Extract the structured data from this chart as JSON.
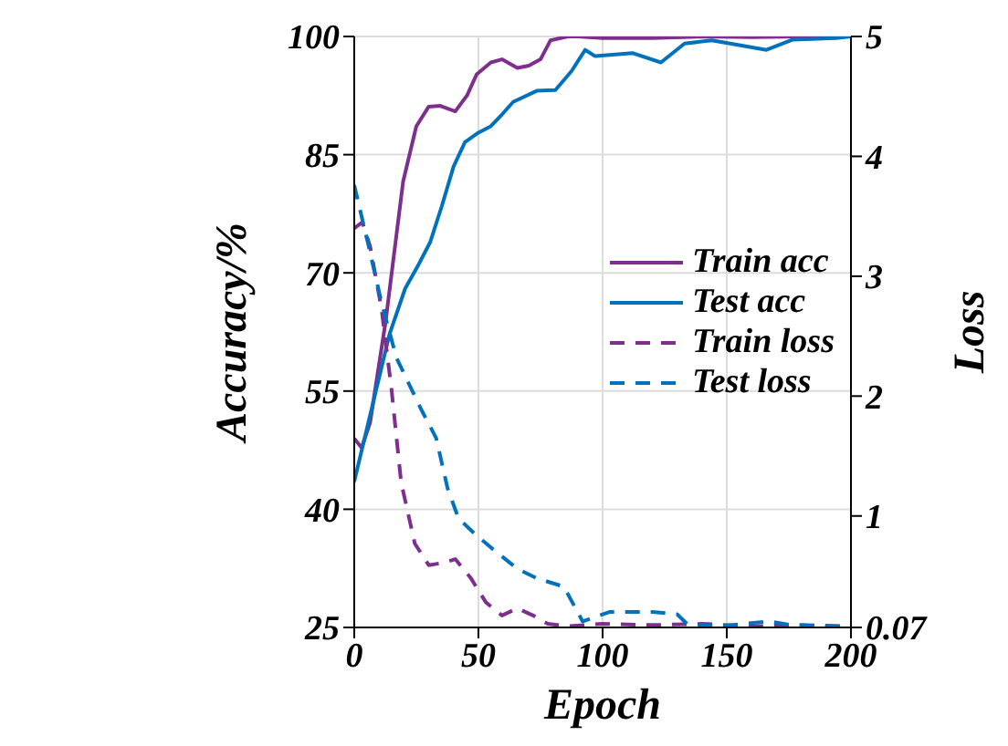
{
  "chart_data": {
    "type": "line",
    "xlabel": "Epoch",
    "ylabel": "Accuracy/%",
    "y2label": "Loss",
    "xlim": [
      0,
      200
    ],
    "xticks": [
      0,
      50,
      100,
      150,
      200
    ],
    "ylim": [
      25,
      100
    ],
    "yticks": [
      25,
      40,
      55,
      70,
      85,
      100
    ],
    "y2lim": [
      0.07,
      5
    ],
    "y2ticks": [
      0.07,
      1,
      2,
      3,
      4,
      5
    ],
    "grid": true,
    "legend": "right",
    "marker": "none",
    "series": [
      {
        "name": "Train acc",
        "color": "#7e2f8e",
        "line_style": "solid",
        "x": [
          0,
          3,
          6.4,
          12.6,
          19.7,
          25,
          30,
          34.7,
          40.7,
          45.4,
          49.3,
          55,
          59.5,
          65.7,
          70.3,
          75,
          79,
          86,
          90,
          100,
          120,
          140,
          160,
          180,
          200
        ],
        "values": [
          49,
          47.8,
          51,
          63.7,
          81.6,
          88.6,
          91.1,
          91.2,
          90.5,
          92.5,
          95.2,
          96.7,
          97.1,
          96,
          96.3,
          97.1,
          99.5,
          100,
          100,
          99.8,
          99.8,
          100,
          99.9,
          100,
          100
        ]
      },
      {
        "name": "Test acc",
        "color": "#0072bd",
        "line_style": "solid",
        "x": [
          0,
          14.2,
          20.5,
          26,
          30.6,
          35.3,
          40,
          44.6,
          50,
          55,
          59.5,
          64,
          73.5,
          81,
          87.5,
          93,
          97,
          112,
          123.5,
          133,
          144,
          166,
          176.6,
          194,
          200
        ],
        "values": [
          43.5,
          62.2,
          68,
          71.1,
          73.9,
          78.5,
          83.5,
          86.6,
          87.8,
          88.6,
          90.1,
          91.7,
          93.1,
          93.2,
          95.6,
          98.3,
          97.5,
          97.9,
          96.7,
          99.1,
          99.5,
          98.3,
          99.6,
          99.8,
          100
        ]
      },
      {
        "name": "Train loss",
        "color": "#7e2f8e",
        "line_style": "dashed",
        "axis": "y2",
        "x": [
          0,
          3.3,
          6.4,
          11,
          15,
          18.9,
          24.4,
          30,
          36,
          40.7,
          47,
          53,
          59.5,
          65.7,
          72,
          78,
          86,
          100,
          120,
          140,
          160,
          180,
          200
        ],
        "values": [
          3.4,
          3.45,
          3.25,
          2.73,
          2.06,
          1.28,
          0.77,
          0.59,
          0.61,
          0.64,
          0.48,
          0.28,
          0.17,
          0.23,
          0.17,
          0.1,
          0.08,
          0.1,
          0.09,
          0.1,
          0.08,
          0.09,
          0.08
        ]
      },
      {
        "name": "Test loss",
        "color": "#0072bd",
        "line_style": "dashed",
        "axis": "y2",
        "x": [
          0,
          5.6,
          11,
          17,
          26.7,
          33,
          37.6,
          42,
          48.6,
          56,
          65.7,
          73.5,
          84.4,
          92,
          103,
          120,
          130,
          134,
          147,
          167,
          176,
          190,
          200
        ],
        "values": [
          3.76,
          3.27,
          2.78,
          2.32,
          1.9,
          1.65,
          1.23,
          0.98,
          0.85,
          0.72,
          0.56,
          0.48,
          0.41,
          0.12,
          0.2,
          0.2,
          0.18,
          0.1,
          0.08,
          0.12,
          0.09,
          0.08,
          0.08
        ]
      }
    ]
  }
}
